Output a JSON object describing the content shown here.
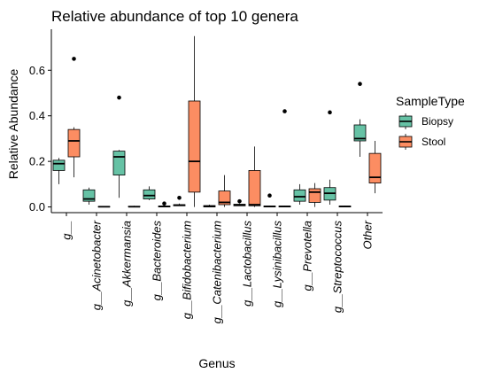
{
  "chart_data": {
    "type": "boxplot",
    "title": "Relative abundance of top 10 genera",
    "xlabel": "Genus",
    "ylabel": "Relative Abundance",
    "ylim": [
      -0.025,
      0.78
    ],
    "yticks": [
      0.0,
      0.2,
      0.4,
      0.6
    ],
    "ytick_labels": [
      "0.0",
      "0.2",
      "0.4",
      "0.6"
    ],
    "grid": false,
    "legend": {
      "title": "SampleType",
      "position": "right"
    },
    "categories": [
      "g__",
      "g__Acinetobacter",
      "g__Akkermansia",
      "g__Bacteroides",
      "g__Bifidobacterium",
      "g__Catenibacterium",
      "g__Lactobacillus",
      "g__Lysinibacillus",
      "g__Prevotella",
      "g__Streptococcus",
      "Other"
    ],
    "series": [
      {
        "name": "Biopsy",
        "color": "#66c2a5",
        "boxes": [
          {
            "min": 0.1,
            "q1": 0.16,
            "median": 0.19,
            "q3": 0.205,
            "max": 0.215,
            "outliers": []
          },
          {
            "min": 0.01,
            "q1": 0.025,
            "median": 0.035,
            "q3": 0.075,
            "max": 0.085,
            "outliers": []
          },
          {
            "min": 0.04,
            "q1": 0.14,
            "median": 0.22,
            "q3": 0.245,
            "max": 0.25,
            "outliers": [
              0.48
            ]
          },
          {
            "min": 0.03,
            "q1": 0.035,
            "median": 0.05,
            "q3": 0.075,
            "max": 0.09,
            "outliers": []
          },
          {
            "min": 0.005,
            "q1": 0.005,
            "median": 0.008,
            "q3": 0.01,
            "max": 0.015,
            "outliers": [
              0.04
            ]
          },
          {
            "min": 0.0,
            "q1": 0.0,
            "median": 0.003,
            "q3": 0.006,
            "max": 0.01,
            "outliers": []
          },
          {
            "min": 0.005,
            "q1": 0.005,
            "median": 0.008,
            "q3": 0.012,
            "max": 0.015,
            "outliers": [
              0.025
            ]
          },
          {
            "min": 0.0,
            "q1": 0.0,
            "median": 0.002,
            "q3": 0.004,
            "max": 0.005,
            "outliers": [
              0.05
            ]
          },
          {
            "min": 0.01,
            "q1": 0.025,
            "median": 0.045,
            "q3": 0.075,
            "max": 0.1,
            "outliers": []
          },
          {
            "min": 0.01,
            "q1": 0.03,
            "median": 0.06,
            "q3": 0.085,
            "max": 0.12,
            "outliers": [
              0.415
            ]
          },
          {
            "min": 0.22,
            "q1": 0.29,
            "median": 0.3,
            "q3": 0.36,
            "max": 0.385,
            "outliers": [
              0.54
            ]
          }
        ]
      },
      {
        "name": "Stool",
        "color": "#fc8d62",
        "boxes": [
          {
            "min": 0.13,
            "q1": 0.22,
            "median": 0.29,
            "q3": 0.34,
            "max": 0.35,
            "outliers": [
              0.65
            ]
          },
          {
            "min": 0.0,
            "q1": 0.0,
            "median": 0.001,
            "q3": 0.002,
            "max": 0.003,
            "outliers": []
          },
          {
            "min": 0.0,
            "q1": 0.0,
            "median": 0.001,
            "q3": 0.003,
            "max": 0.005,
            "outliers": []
          },
          {
            "min": 0.0,
            "q1": 0.0,
            "median": 0.002,
            "q3": 0.004,
            "max": 0.005,
            "outliers": [
              0.015
            ]
          },
          {
            "min": 0.0,
            "q1": 0.065,
            "median": 0.2,
            "q3": 0.465,
            "max": 0.75,
            "outliers": []
          },
          {
            "min": 0.0,
            "q1": 0.01,
            "median": 0.02,
            "q3": 0.07,
            "max": 0.14,
            "outliers": []
          },
          {
            "min": 0.0,
            "q1": 0.005,
            "median": 0.01,
            "q3": 0.16,
            "max": 0.265,
            "outliers": []
          },
          {
            "min": 0.0,
            "q1": 0.0,
            "median": 0.002,
            "q3": 0.004,
            "max": 0.005,
            "outliers": [
              0.42
            ]
          },
          {
            "min": 0.0,
            "q1": 0.02,
            "median": 0.065,
            "q3": 0.08,
            "max": 0.105,
            "outliers": []
          },
          {
            "min": 0.0,
            "q1": 0.0,
            "median": 0.002,
            "q3": 0.004,
            "max": 0.006,
            "outliers": []
          },
          {
            "min": 0.06,
            "q1": 0.105,
            "median": 0.13,
            "q3": 0.235,
            "max": 0.29,
            "outliers": []
          }
        ]
      }
    ]
  }
}
